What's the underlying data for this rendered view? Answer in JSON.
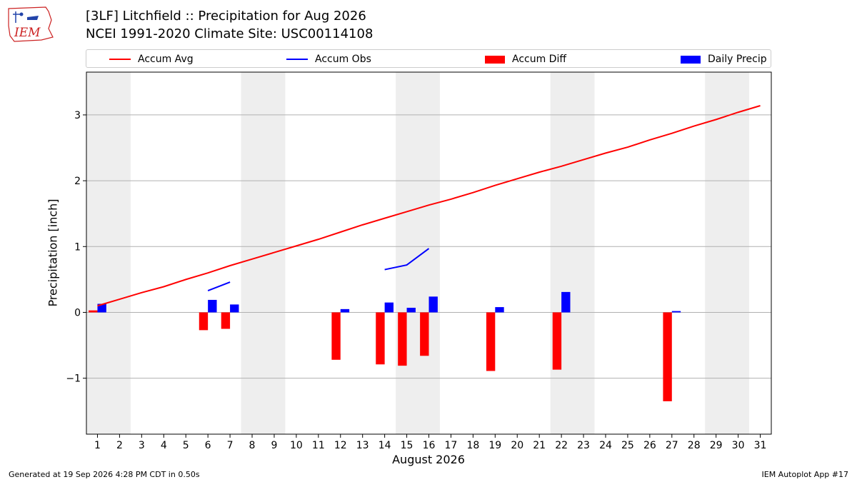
{
  "header": {
    "title_line1": "[3LF] Litchfield :: Precipitation for Aug 2026",
    "title_line2": "NCEI 1991-2020 Climate Site: USC00114108",
    "logo_text": "IEM"
  },
  "legend": {
    "items": [
      {
        "label": "Accum Avg",
        "kind": "line",
        "color": "#ff0000"
      },
      {
        "label": "Accum Obs",
        "kind": "line",
        "color": "#0000ff"
      },
      {
        "label": "Accum Diff",
        "kind": "patch",
        "color": "#ff0000"
      },
      {
        "label": "Daily Precip",
        "kind": "patch",
        "color": "#0000ff"
      }
    ]
  },
  "footer": {
    "generated": "Generated at 19 Sep 2026 4:28 PM CDT in 0.50s",
    "app": "IEM Autoplot App #17"
  },
  "colors": {
    "avg": "#ff0000",
    "obs": "#0000ff",
    "diff": "#ff0000",
    "daily": "#0000ff",
    "weekend_shade": "#eeeeee",
    "grid": "#b0b0b0"
  },
  "chart_data": {
    "type": "bar",
    "title": "[3LF] Litchfield :: Precipitation for Aug 2026",
    "subtitle": "NCEI 1991-2020 Climate Site: USC00114108",
    "xlabel": "August 2026",
    "ylabel": "Precipitation [inch]",
    "xlim": [
      0.5,
      31.5
    ],
    "ylim": [
      -1.85,
      3.65
    ],
    "yticks": [
      -1,
      0,
      1,
      2,
      3
    ],
    "ytick_labels": [
      "−1",
      "0",
      "1",
      "2",
      "3"
    ],
    "grid": "horizontal",
    "legend_position": "top",
    "x_days": [
      1,
      2,
      3,
      4,
      5,
      6,
      7,
      8,
      9,
      10,
      11,
      12,
      13,
      14,
      15,
      16,
      17,
      18,
      19,
      20,
      21,
      22,
      23,
      24,
      25,
      26,
      27,
      28,
      29,
      30,
      31
    ],
    "x_tick_labels": [
      "1",
      "2",
      "3",
      "4",
      "5",
      "6",
      "7",
      "8",
      "9",
      "10",
      "11",
      "12",
      "13",
      "14",
      "15",
      "16",
      "17",
      "18",
      "19",
      "20",
      "21",
      "22",
      "23",
      "24",
      "25",
      "26",
      "27",
      "28",
      "29",
      "30",
      "31"
    ],
    "shaded_spans": [
      [
        0.5,
        2.5
      ],
      [
        7.5,
        9.5
      ],
      [
        14.5,
        16.5
      ],
      [
        21.5,
        23.5
      ],
      [
        28.5,
        30.5
      ]
    ],
    "series": [
      {
        "name": "Accum Avg",
        "kind": "line",
        "x": [
          1,
          2,
          3,
          4,
          5,
          6,
          7,
          8,
          9,
          10,
          11,
          12,
          13,
          14,
          15,
          16,
          17,
          18,
          19,
          20,
          21,
          22,
          23,
          24,
          25,
          26,
          27,
          28,
          29,
          30,
          31
        ],
        "values": [
          0.1,
          0.2,
          0.3,
          0.39,
          0.5,
          0.6,
          0.71,
          0.81,
          0.91,
          1.01,
          1.11,
          1.22,
          1.33,
          1.43,
          1.53,
          1.63,
          1.72,
          1.82,
          1.93,
          2.03,
          2.13,
          2.22,
          2.32,
          2.42,
          2.51,
          2.62,
          2.72,
          2.83,
          2.93,
          3.04,
          3.14
        ]
      },
      {
        "name": "Accum Obs",
        "kind": "line",
        "segments": [
          {
            "x": [
              6,
              7
            ],
            "values": [
              0.33,
              0.46
            ]
          },
          {
            "x": [
              14,
              15,
              16
            ],
            "values": [
              0.65,
              0.72,
              0.97
            ]
          }
        ]
      },
      {
        "name": "Accum Diff",
        "kind": "bar",
        "x": [
          1,
          6,
          7,
          12,
          14,
          15,
          16,
          19,
          22,
          27
        ],
        "values": [
          0.03,
          -0.27,
          -0.25,
          -0.72,
          -0.79,
          -0.81,
          -0.66,
          -0.89,
          -0.87,
          -1.35
        ]
      },
      {
        "name": "Daily Precip",
        "kind": "bar",
        "x": [
          1,
          6,
          7,
          12,
          14,
          15,
          16,
          19,
          22,
          27
        ],
        "values": [
          0.13,
          0.19,
          0.12,
          0.05,
          0.15,
          0.07,
          0.24,
          0.08,
          0.31,
          0.02
        ]
      }
    ]
  }
}
